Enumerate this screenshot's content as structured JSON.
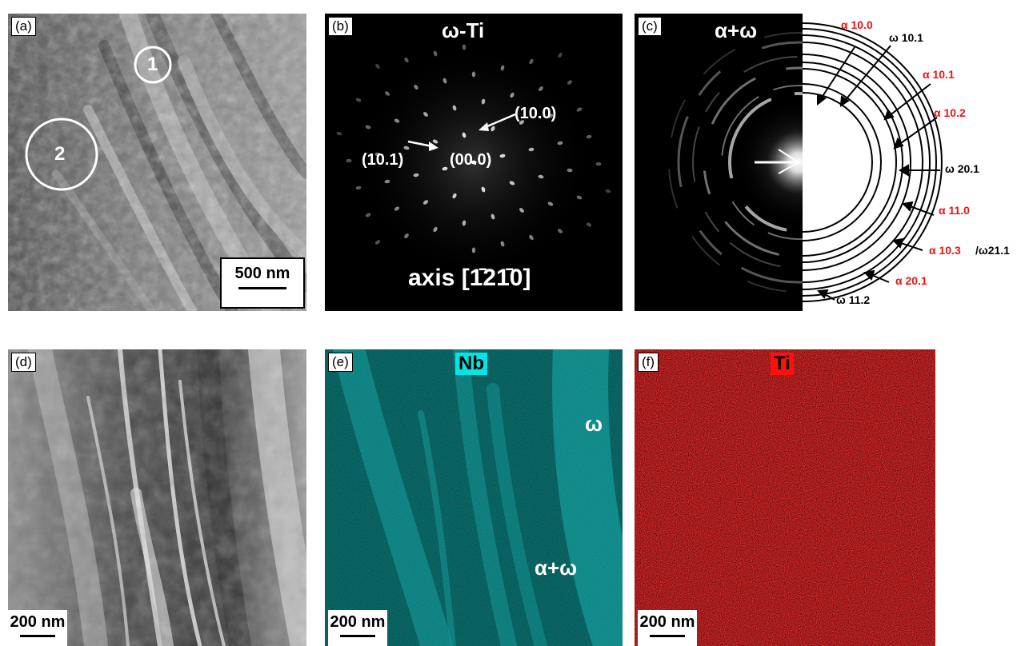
{
  "panels": {
    "a": {
      "label": "(a)",
      "scale": "500 nm",
      "region_1": "1",
      "region_2": "2"
    },
    "b": {
      "label": "(b)",
      "title": "ω-Ti",
      "axis": "axis [1̄21̄0]",
      "spot_100": "(10.0)",
      "spot_101": "(10.1)",
      "spot_000": "(00.0)"
    },
    "c": {
      "label": "(c)",
      "title": "α+ω",
      "rings": [
        {
          "text": "α 10.0",
          "color": "red"
        },
        {
          "text": "ω 10.1",
          "color": "black"
        },
        {
          "text": "α 10.1",
          "color": "red"
        },
        {
          "text": "α 10.2",
          "color": "red"
        },
        {
          "text": "ω 20.1",
          "color": "black"
        },
        {
          "text": "α 11.0",
          "color": "red"
        },
        {
          "text": "α 10.3",
          "color": "red"
        },
        {
          "text": "/ω21.1",
          "color": "black"
        },
        {
          "text": "α 20.1",
          "color": "red"
        },
        {
          "text": "ω 11.2",
          "color": "black"
        }
      ]
    },
    "d": {
      "label": "(d)",
      "scale": "200 nm"
    },
    "e": {
      "label": "(e)",
      "element": "Nb",
      "phase_omega": "ω",
      "phase_alpha_omega": "α+ω",
      "scale": "200 nm",
      "color": "#00b3b3"
    },
    "f": {
      "label": "(f)",
      "element": "Ti",
      "scale": "200 nm",
      "color": "#d00000"
    }
  }
}
